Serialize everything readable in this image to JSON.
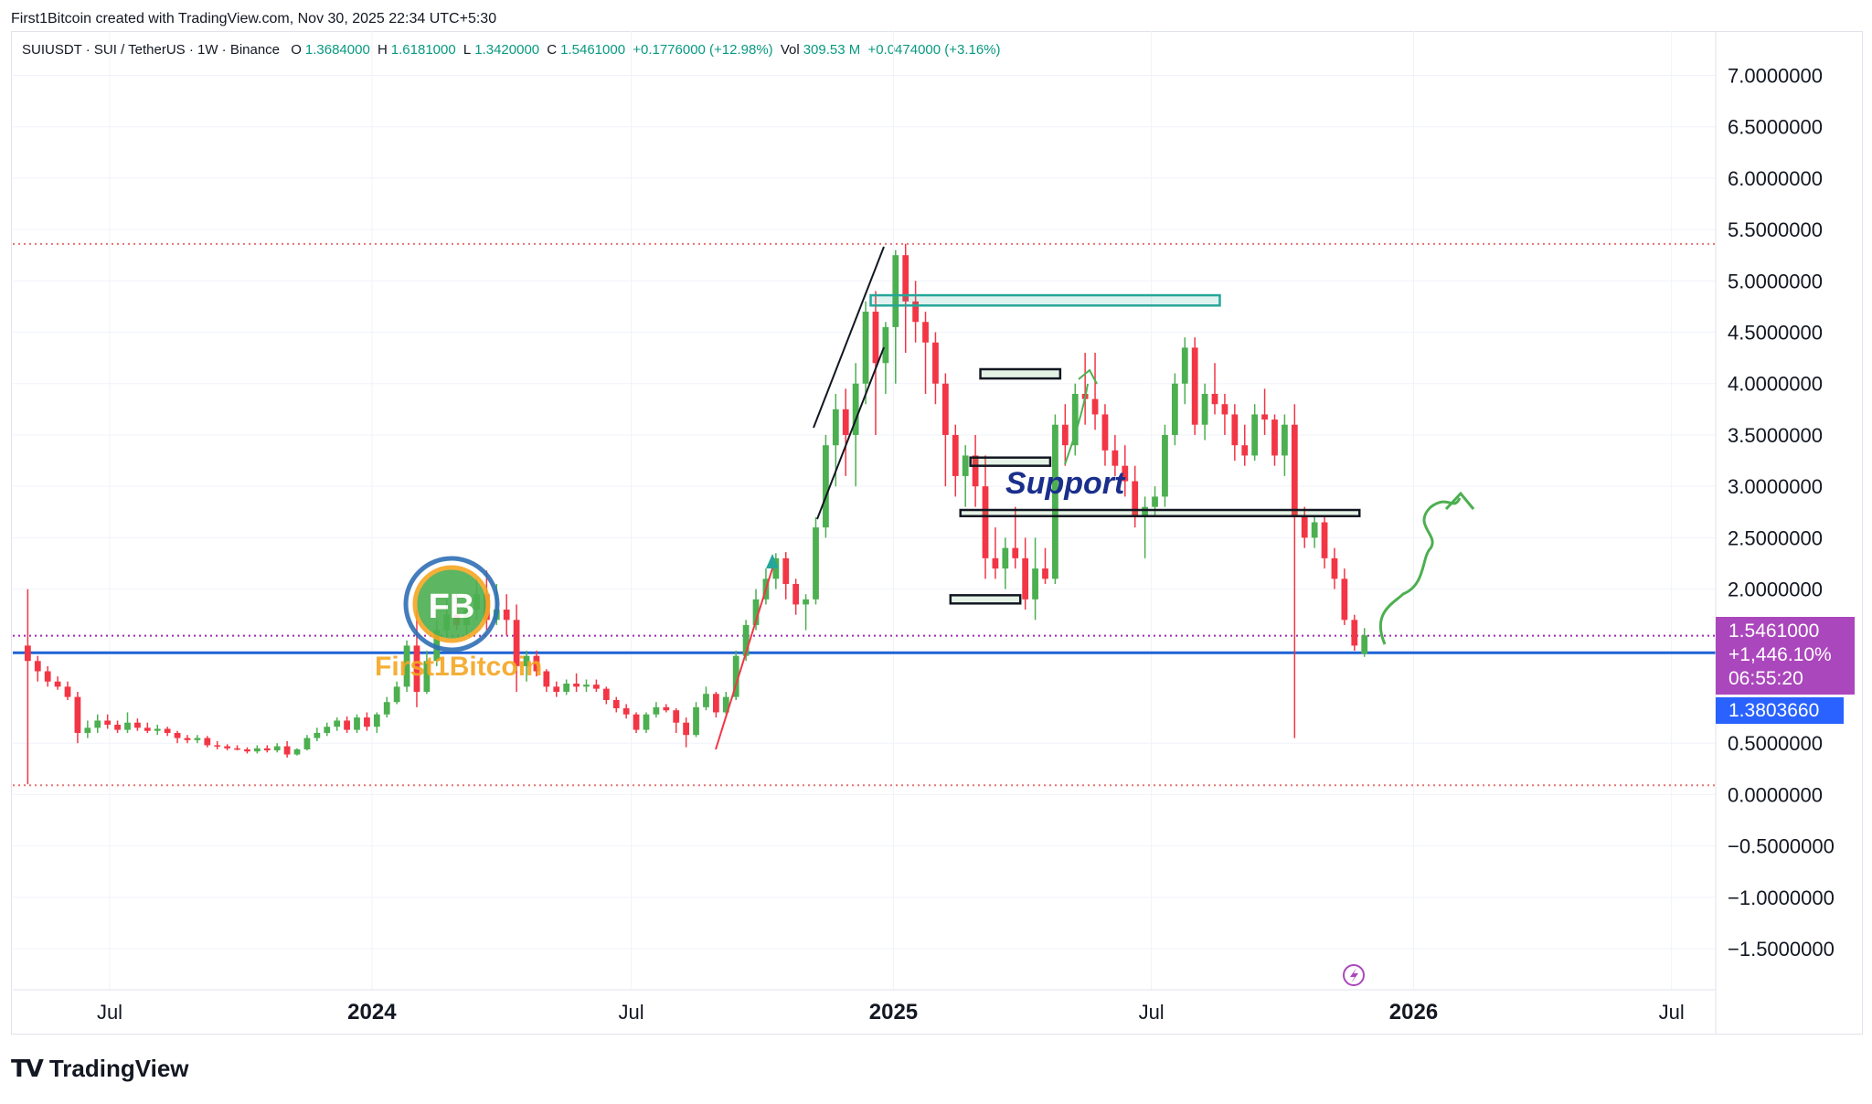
{
  "header": {
    "credit": "First1Bitcoin created with TradingView.com, Nov 30, 2025 22:34 UTC+5:30"
  },
  "legend": {
    "symbol": "SUIUSDT · SUI / TetherUS · 1W · Binance",
    "open_label": "O",
    "open": "1.3684000",
    "high_label": "H",
    "high": "1.6181000",
    "low_label": "L",
    "low": "1.3420000",
    "close_label": "C",
    "close": "1.5461000",
    "change": "+0.1776000 (+12.98%)",
    "vol_label": "Vol",
    "vol": "309.53 M",
    "vol_change": "+0.0474000 (+3.16%)"
  },
  "price_badge": {
    "price": "1.5461000",
    "change_pct": "+1,446.10%",
    "countdown": "06:55:20",
    "color": "#ab47bc"
  },
  "line_badge": {
    "value": "1.3803660",
    "color": "#2962ff"
  },
  "annotations": {
    "support_label": "Support",
    "watermark": "First1Bitcoin",
    "watermark_initials": "FB"
  },
  "brand": {
    "name": "TradingView"
  },
  "colors": {
    "up": "#4caf50",
    "down": "#f23645",
    "hline": "#1e63d6",
    "accent": "#ab47bc"
  },
  "chart_data": {
    "type": "candlestick",
    "title": "SUIUSDT · SUI / TetherUS · 1W · Binance",
    "y_ticks": [
      "7.0000000",
      "6.5000000",
      "6.0000000",
      "5.5000000",
      "5.0000000",
      "4.5000000",
      "4.0000000",
      "3.5000000",
      "3.0000000",
      "2.5000000",
      "2.0000000",
      "0.5000000",
      "0.0000000",
      "−0.5000000",
      "−1.0000000",
      "−1.5000000"
    ],
    "y_tick_values": [
      7.0,
      6.5,
      6.0,
      5.5,
      5.0,
      4.5,
      4.0,
      3.5,
      3.0,
      2.5,
      2.0,
      0.5,
      0.0,
      -0.5,
      -1.0,
      -1.5
    ],
    "ylim": [
      -1.9,
      7.2
    ],
    "x_ticks": [
      {
        "label": "Jul",
        "date": "2023-07-01",
        "bold": false
      },
      {
        "label": "2024",
        "date": "2024-01-01",
        "bold": true
      },
      {
        "label": "Jul",
        "date": "2024-07-01",
        "bold": false
      },
      {
        "label": "2025",
        "date": "2025-01-01",
        "bold": true
      },
      {
        "label": "Jul",
        "date": "2025-07-01",
        "bold": false
      },
      {
        "label": "2026",
        "date": "2026-01-01",
        "bold": true
      },
      {
        "label": "Jul",
        "date": "2026-07-01",
        "bold": false
      }
    ],
    "xlim": [
      "2023-04-24",
      "2026-08-01"
    ],
    "horizontal_lines": [
      {
        "name": "blue-level",
        "value": 1.3804,
        "style": "solid",
        "color": "#1e63d6"
      },
      {
        "name": "close-level",
        "value": 1.5461,
        "style": "dotted",
        "color": "#9c27b0"
      },
      {
        "name": "ath-level",
        "value": 5.36,
        "style": "dotted",
        "color": "#e57373"
      },
      {
        "name": "low-level",
        "value": 0.09,
        "style": "dotted",
        "color": "#e57373"
      }
    ],
    "zones": [
      {
        "name": "teal-zone",
        "start": "2024-12-16",
        "end": "2025-08-18",
        "top": 4.86,
        "bottom": 4.76,
        "color": "#26a69a"
      },
      {
        "name": "zone-4",
        "start": "2025-03-03",
        "end": "2025-04-28",
        "top": 4.14,
        "bottom": 4.05,
        "color": "#131722"
      },
      {
        "name": "zone-3.2",
        "start": "2025-02-24",
        "end": "2025-04-21",
        "top": 3.28,
        "bottom": 3.2,
        "color": "#131722"
      },
      {
        "name": "zone-2.75",
        "start": "2025-02-17",
        "end": "2025-11-24",
        "top": 2.77,
        "bottom": 2.71,
        "color": "#131722"
      },
      {
        "name": "zone-1.9",
        "start": "2025-02-10",
        "end": "2025-03-31",
        "top": 1.94,
        "bottom": 1.86,
        "color": "#131722"
      }
    ],
    "candles": [
      {
        "t": "2023-05-01",
        "o": 1.45,
        "h": 2.0,
        "l": 0.1,
        "c": 1.3
      },
      {
        "t": "2023-05-08",
        "o": 1.3,
        "h": 1.35,
        "l": 1.1,
        "c": 1.2
      },
      {
        "t": "2023-05-15",
        "o": 1.2,
        "h": 1.25,
        "l": 1.05,
        "c": 1.1
      },
      {
        "t": "2023-05-22",
        "o": 1.1,
        "h": 1.15,
        "l": 1.02,
        "c": 1.05
      },
      {
        "t": "2023-05-29",
        "o": 1.05,
        "h": 1.1,
        "l": 0.92,
        "c": 0.95
      },
      {
        "t": "2023-06-05",
        "o": 0.95,
        "h": 1.0,
        "l": 0.5,
        "c": 0.6
      },
      {
        "t": "2023-06-12",
        "o": 0.6,
        "h": 0.72,
        "l": 0.55,
        "c": 0.65
      },
      {
        "t": "2023-06-19",
        "o": 0.65,
        "h": 0.78,
        "l": 0.6,
        "c": 0.72
      },
      {
        "t": "2023-06-26",
        "o": 0.72,
        "h": 0.78,
        "l": 0.64,
        "c": 0.68
      },
      {
        "t": "2023-07-03",
        "o": 0.68,
        "h": 0.72,
        "l": 0.6,
        "c": 0.63
      },
      {
        "t": "2023-07-10",
        "o": 0.63,
        "h": 0.8,
        "l": 0.6,
        "c": 0.7
      },
      {
        "t": "2023-07-17",
        "o": 0.7,
        "h": 0.74,
        "l": 0.62,
        "c": 0.65
      },
      {
        "t": "2023-07-24",
        "o": 0.65,
        "h": 0.7,
        "l": 0.6,
        "c": 0.62
      },
      {
        "t": "2023-07-31",
        "o": 0.62,
        "h": 0.68,
        "l": 0.58,
        "c": 0.64
      },
      {
        "t": "2023-08-07",
        "o": 0.64,
        "h": 0.66,
        "l": 0.57,
        "c": 0.6
      },
      {
        "t": "2023-08-14",
        "o": 0.6,
        "h": 0.62,
        "l": 0.5,
        "c": 0.55
      },
      {
        "t": "2023-08-21",
        "o": 0.55,
        "h": 0.58,
        "l": 0.5,
        "c": 0.53
      },
      {
        "t": "2023-08-28",
        "o": 0.53,
        "h": 0.58,
        "l": 0.5,
        "c": 0.55
      },
      {
        "t": "2023-09-04",
        "o": 0.55,
        "h": 0.57,
        "l": 0.46,
        "c": 0.48
      },
      {
        "t": "2023-09-11",
        "o": 0.48,
        "h": 0.52,
        "l": 0.44,
        "c": 0.47
      },
      {
        "t": "2023-09-18",
        "o": 0.47,
        "h": 0.49,
        "l": 0.43,
        "c": 0.45
      },
      {
        "t": "2023-09-25",
        "o": 0.45,
        "h": 0.48,
        "l": 0.43,
        "c": 0.44
      },
      {
        "t": "2023-10-02",
        "o": 0.44,
        "h": 0.46,
        "l": 0.4,
        "c": 0.42
      },
      {
        "t": "2023-10-09",
        "o": 0.42,
        "h": 0.48,
        "l": 0.4,
        "c": 0.45
      },
      {
        "t": "2023-10-16",
        "o": 0.45,
        "h": 0.48,
        "l": 0.41,
        "c": 0.43
      },
      {
        "t": "2023-10-23",
        "o": 0.43,
        "h": 0.5,
        "l": 0.41,
        "c": 0.47
      },
      {
        "t": "2023-10-30",
        "o": 0.47,
        "h": 0.52,
        "l": 0.36,
        "c": 0.39
      },
      {
        "t": "2023-11-06",
        "o": 0.39,
        "h": 0.45,
        "l": 0.38,
        "c": 0.44
      },
      {
        "t": "2023-11-13",
        "o": 0.44,
        "h": 0.58,
        "l": 0.43,
        "c": 0.55
      },
      {
        "t": "2023-11-20",
        "o": 0.55,
        "h": 0.65,
        "l": 0.52,
        "c": 0.6
      },
      {
        "t": "2023-11-27",
        "o": 0.6,
        "h": 0.7,
        "l": 0.57,
        "c": 0.66
      },
      {
        "t": "2023-12-04",
        "o": 0.66,
        "h": 0.75,
        "l": 0.62,
        "c": 0.72
      },
      {
        "t": "2023-12-11",
        "o": 0.72,
        "h": 0.76,
        "l": 0.6,
        "c": 0.63
      },
      {
        "t": "2023-12-18",
        "o": 0.63,
        "h": 0.78,
        "l": 0.6,
        "c": 0.75
      },
      {
        "t": "2023-12-25",
        "o": 0.75,
        "h": 0.8,
        "l": 0.62,
        "c": 0.66
      },
      {
        "t": "2024-01-01",
        "o": 0.66,
        "h": 0.8,
        "l": 0.6,
        "c": 0.78
      },
      {
        "t": "2024-01-08",
        "o": 0.78,
        "h": 0.95,
        "l": 0.75,
        "c": 0.9
      },
      {
        "t": "2024-01-15",
        "o": 0.9,
        "h": 1.1,
        "l": 0.88,
        "c": 1.05
      },
      {
        "t": "2024-01-22",
        "o": 1.05,
        "h": 1.5,
        "l": 1.0,
        "c": 1.45
      },
      {
        "t": "2024-01-29",
        "o": 1.45,
        "h": 1.8,
        "l": 0.85,
        "c": 1.0
      },
      {
        "t": "2024-02-05",
        "o": 1.0,
        "h": 1.4,
        "l": 0.98,
        "c": 1.3
      },
      {
        "t": "2024-02-12",
        "o": 1.3,
        "h": 1.7,
        "l": 1.25,
        "c": 1.6
      },
      {
        "t": "2024-02-19",
        "o": 1.6,
        "h": 1.9,
        "l": 1.55,
        "c": 1.75
      },
      {
        "t": "2024-02-26",
        "o": 1.75,
        "h": 1.95,
        "l": 1.6,
        "c": 1.65
      },
      {
        "t": "2024-03-04",
        "o": 1.65,
        "h": 1.85,
        "l": 1.55,
        "c": 1.8
      },
      {
        "t": "2024-03-11",
        "o": 1.8,
        "h": 2.1,
        "l": 1.7,
        "c": 1.95
      },
      {
        "t": "2024-03-18",
        "o": 1.95,
        "h": 2.18,
        "l": 1.6,
        "c": 1.7
      },
      {
        "t": "2024-03-25",
        "o": 1.7,
        "h": 2.05,
        "l": 1.65,
        "c": 1.8
      },
      {
        "t": "2024-04-01",
        "o": 1.8,
        "h": 1.95,
        "l": 1.55,
        "c": 1.7
      },
      {
        "t": "2024-04-08",
        "o": 1.7,
        "h": 1.85,
        "l": 1.0,
        "c": 1.25
      },
      {
        "t": "2024-04-15",
        "o": 1.25,
        "h": 1.4,
        "l": 1.1,
        "c": 1.35
      },
      {
        "t": "2024-04-22",
        "o": 1.35,
        "h": 1.4,
        "l": 1.15,
        "c": 1.2
      },
      {
        "t": "2024-04-29",
        "o": 1.2,
        "h": 1.22,
        "l": 1.0,
        "c": 1.05
      },
      {
        "t": "2024-05-06",
        "o": 1.05,
        "h": 1.1,
        "l": 0.95,
        "c": 1.0
      },
      {
        "t": "2024-05-13",
        "o": 1.0,
        "h": 1.12,
        "l": 0.97,
        "c": 1.08
      },
      {
        "t": "2024-05-20",
        "o": 1.08,
        "h": 1.18,
        "l": 1.0,
        "c": 1.05
      },
      {
        "t": "2024-05-27",
        "o": 1.05,
        "h": 1.12,
        "l": 1.0,
        "c": 1.07
      },
      {
        "t": "2024-06-03",
        "o": 1.07,
        "h": 1.12,
        "l": 1.0,
        "c": 1.03
      },
      {
        "t": "2024-06-10",
        "o": 1.03,
        "h": 1.05,
        "l": 0.88,
        "c": 0.92
      },
      {
        "t": "2024-06-17",
        "o": 0.92,
        "h": 0.95,
        "l": 0.8,
        "c": 0.84
      },
      {
        "t": "2024-06-24",
        "o": 0.84,
        "h": 0.88,
        "l": 0.74,
        "c": 0.78
      },
      {
        "t": "2024-07-01",
        "o": 0.78,
        "h": 0.8,
        "l": 0.6,
        "c": 0.63
      },
      {
        "t": "2024-07-08",
        "o": 0.63,
        "h": 0.8,
        "l": 0.6,
        "c": 0.78
      },
      {
        "t": "2024-07-15",
        "o": 0.78,
        "h": 0.9,
        "l": 0.75,
        "c": 0.85
      },
      {
        "t": "2024-07-22",
        "o": 0.85,
        "h": 0.88,
        "l": 0.8,
        "c": 0.82
      },
      {
        "t": "2024-07-29",
        "o": 0.82,
        "h": 0.84,
        "l": 0.6,
        "c": 0.7
      },
      {
        "t": "2024-08-05",
        "o": 0.7,
        "h": 0.75,
        "l": 0.46,
        "c": 0.58
      },
      {
        "t": "2024-08-12",
        "o": 0.58,
        "h": 0.9,
        "l": 0.56,
        "c": 0.85
      },
      {
        "t": "2024-08-19",
        "o": 0.85,
        "h": 1.05,
        "l": 0.82,
        "c": 0.98
      },
      {
        "t": "2024-08-26",
        "o": 0.98,
        "h": 1.0,
        "l": 0.75,
        "c": 0.8
      },
      {
        "t": "2024-09-02",
        "o": 0.8,
        "h": 1.0,
        "l": 0.78,
        "c": 0.95
      },
      {
        "t": "2024-09-09",
        "o": 0.95,
        "h": 1.4,
        "l": 0.92,
        "c": 1.35
      },
      {
        "t": "2024-09-16",
        "o": 1.35,
        "h": 1.7,
        "l": 1.3,
        "c": 1.65
      },
      {
        "t": "2024-09-23",
        "o": 1.65,
        "h": 2.0,
        "l": 1.6,
        "c": 1.9
      },
      {
        "t": "2024-09-30",
        "o": 1.9,
        "h": 2.2,
        "l": 1.85,
        "c": 2.1
      },
      {
        "t": "2024-10-07",
        "o": 2.1,
        "h": 2.35,
        "l": 2.0,
        "c": 2.3
      },
      {
        "t": "2024-10-14",
        "o": 2.3,
        "h": 2.36,
        "l": 1.9,
        "c": 2.05
      },
      {
        "t": "2024-10-21",
        "o": 2.05,
        "h": 2.1,
        "l": 1.75,
        "c": 1.85
      },
      {
        "t": "2024-10-28",
        "o": 1.85,
        "h": 1.95,
        "l": 1.6,
        "c": 1.9
      },
      {
        "t": "2024-11-04",
        "o": 1.9,
        "h": 2.7,
        "l": 1.85,
        "c": 2.6
      },
      {
        "t": "2024-11-11",
        "o": 2.6,
        "h": 3.5,
        "l": 2.5,
        "c": 3.4
      },
      {
        "t": "2024-11-18",
        "o": 3.4,
        "h": 3.9,
        "l": 3.0,
        "c": 3.75
      },
      {
        "t": "2024-11-25",
        "o": 3.75,
        "h": 3.95,
        "l": 3.1,
        "c": 3.5
      },
      {
        "t": "2024-12-02",
        "o": 3.5,
        "h": 4.2,
        "l": 3.0,
        "c": 4.0
      },
      {
        "t": "2024-12-09",
        "o": 4.0,
        "h": 4.8,
        "l": 3.8,
        "c": 4.7
      },
      {
        "t": "2024-12-16",
        "o": 4.7,
        "h": 4.9,
        "l": 3.5,
        "c": 4.2
      },
      {
        "t": "2024-12-23",
        "o": 4.2,
        "h": 4.6,
        "l": 3.9,
        "c": 4.55
      },
      {
        "t": "2024-12-30",
        "o": 4.55,
        "h": 5.3,
        "l": 4.0,
        "c": 5.25
      },
      {
        "t": "2025-01-06",
        "o": 5.25,
        "h": 5.36,
        "l": 4.3,
        "c": 4.8
      },
      {
        "t": "2025-01-13",
        "o": 4.8,
        "h": 5.0,
        "l": 4.4,
        "c": 4.6
      },
      {
        "t": "2025-01-20",
        "o": 4.6,
        "h": 4.7,
        "l": 3.9,
        "c": 4.4
      },
      {
        "t": "2025-01-27",
        "o": 4.4,
        "h": 4.5,
        "l": 3.8,
        "c": 4.0
      },
      {
        "t": "2025-02-03",
        "o": 4.0,
        "h": 4.1,
        "l": 3.0,
        "c": 3.5
      },
      {
        "t": "2025-02-10",
        "o": 3.5,
        "h": 3.6,
        "l": 2.9,
        "c": 3.1
      },
      {
        "t": "2025-02-17",
        "o": 3.1,
        "h": 3.4,
        "l": 2.8,
        "c": 3.3
      },
      {
        "t": "2025-02-24",
        "o": 3.3,
        "h": 3.5,
        "l": 2.8,
        "c": 3.0
      },
      {
        "t": "2025-03-03",
        "o": 3.0,
        "h": 3.3,
        "l": 2.1,
        "c": 2.3
      },
      {
        "t": "2025-03-10",
        "o": 2.3,
        "h": 2.6,
        "l": 2.1,
        "c": 2.2
      },
      {
        "t": "2025-03-17",
        "o": 2.2,
        "h": 2.5,
        "l": 2.0,
        "c": 2.4
      },
      {
        "t": "2025-03-24",
        "o": 2.4,
        "h": 2.8,
        "l": 2.2,
        "c": 2.3
      },
      {
        "t": "2025-03-31",
        "o": 2.3,
        "h": 2.5,
        "l": 1.8,
        "c": 1.9
      },
      {
        "t": "2025-04-07",
        "o": 1.9,
        "h": 2.5,
        "l": 1.7,
        "c": 2.2
      },
      {
        "t": "2025-04-14",
        "o": 2.2,
        "h": 2.4,
        "l": 2.05,
        "c": 2.1
      },
      {
        "t": "2025-04-21",
        "o": 2.1,
        "h": 3.7,
        "l": 2.05,
        "c": 3.6
      },
      {
        "t": "2025-04-28",
        "o": 3.6,
        "h": 3.8,
        "l": 3.2,
        "c": 3.4
      },
      {
        "t": "2025-05-05",
        "o": 3.4,
        "h": 4.0,
        "l": 3.3,
        "c": 3.9
      },
      {
        "t": "2025-05-12",
        "o": 3.9,
        "h": 4.3,
        "l": 3.6,
        "c": 3.85
      },
      {
        "t": "2025-05-19",
        "o": 3.85,
        "h": 4.3,
        "l": 3.55,
        "c": 3.7
      },
      {
        "t": "2025-05-26",
        "o": 3.7,
        "h": 3.8,
        "l": 3.2,
        "c": 3.35
      },
      {
        "t": "2025-06-02",
        "o": 3.35,
        "h": 3.5,
        "l": 3.1,
        "c": 3.2
      },
      {
        "t": "2025-06-09",
        "o": 3.2,
        "h": 3.4,
        "l": 2.9,
        "c": 3.05
      },
      {
        "t": "2025-06-16",
        "o": 3.05,
        "h": 3.2,
        "l": 2.6,
        "c": 2.7
      },
      {
        "t": "2025-06-23",
        "o": 2.7,
        "h": 2.9,
        "l": 2.3,
        "c": 2.8
      },
      {
        "t": "2025-06-30",
        "o": 2.8,
        "h": 3.0,
        "l": 2.7,
        "c": 2.9
      },
      {
        "t": "2025-07-07",
        "o": 2.9,
        "h": 3.6,
        "l": 2.8,
        "c": 3.5
      },
      {
        "t": "2025-07-14",
        "o": 3.5,
        "h": 4.1,
        "l": 3.4,
        "c": 4.0
      },
      {
        "t": "2025-07-21",
        "o": 4.0,
        "h": 4.45,
        "l": 3.8,
        "c": 4.35
      },
      {
        "t": "2025-07-28",
        "o": 4.35,
        "h": 4.45,
        "l": 3.5,
        "c": 3.6
      },
      {
        "t": "2025-08-04",
        "o": 3.6,
        "h": 4.0,
        "l": 3.45,
        "c": 3.9
      },
      {
        "t": "2025-08-11",
        "o": 3.9,
        "h": 4.2,
        "l": 3.7,
        "c": 3.8
      },
      {
        "t": "2025-08-18",
        "o": 3.8,
        "h": 3.9,
        "l": 3.5,
        "c": 3.7
      },
      {
        "t": "2025-08-25",
        "o": 3.7,
        "h": 3.8,
        "l": 3.25,
        "c": 3.4
      },
      {
        "t": "2025-09-01",
        "o": 3.4,
        "h": 3.6,
        "l": 3.2,
        "c": 3.3
      },
      {
        "t": "2025-09-08",
        "o": 3.3,
        "h": 3.8,
        "l": 3.25,
        "c": 3.7
      },
      {
        "t": "2025-09-15",
        "o": 3.7,
        "h": 3.95,
        "l": 3.5,
        "c": 3.65
      },
      {
        "t": "2025-09-22",
        "o": 3.65,
        "h": 3.7,
        "l": 3.2,
        "c": 3.3
      },
      {
        "t": "2025-09-29",
        "o": 3.3,
        "h": 3.7,
        "l": 3.1,
        "c": 3.6
      },
      {
        "t": "2025-10-06",
        "o": 3.6,
        "h": 3.8,
        "l": 0.55,
        "c": 2.7
      },
      {
        "t": "2025-10-13",
        "o": 2.7,
        "h": 2.8,
        "l": 2.4,
        "c": 2.5
      },
      {
        "t": "2025-10-20",
        "o": 2.5,
        "h": 2.7,
        "l": 2.4,
        "c": 2.65
      },
      {
        "t": "2025-10-27",
        "o": 2.65,
        "h": 2.7,
        "l": 2.2,
        "c": 2.3
      },
      {
        "t": "2025-11-03",
        "o": 2.3,
        "h": 2.4,
        "l": 2.0,
        "c": 2.1
      },
      {
        "t": "2025-11-10",
        "o": 2.1,
        "h": 2.2,
        "l": 1.65,
        "c": 1.7
      },
      {
        "t": "2025-11-17",
        "o": 1.7,
        "h": 1.75,
        "l": 1.4,
        "c": 1.45
      },
      {
        "t": "2025-11-24",
        "o": 1.37,
        "h": 1.62,
        "l": 1.34,
        "c": 1.55
      }
    ]
  }
}
